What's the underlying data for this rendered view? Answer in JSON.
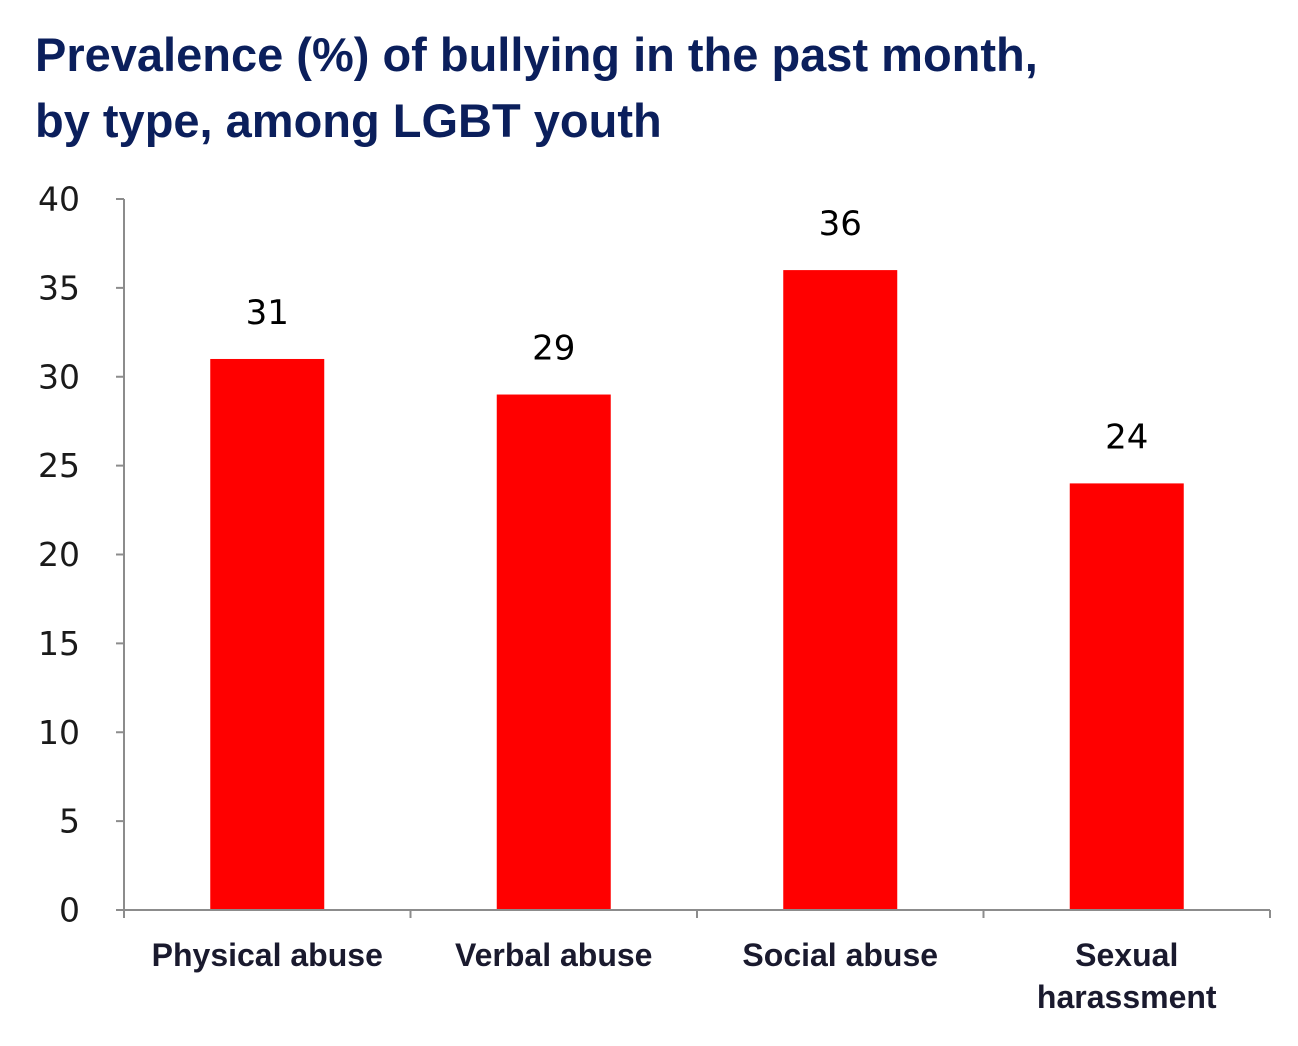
{
  "chart_data": {
    "type": "bar",
    "title_lines": [
      "Prevalence (%) of bullying in the past month,",
      "by type, among LGBT youth"
    ],
    "categories": [
      [
        "Physical abuse"
      ],
      [
        "Verbal abuse"
      ],
      [
        "Social abuse"
      ],
      [
        "Sexual",
        "harassment"
      ]
    ],
    "values": [
      31,
      29,
      36,
      24
    ],
    "data_labels": [
      "31",
      "29",
      "36",
      "24"
    ],
    "y_ticks": [
      "0",
      "5",
      "10",
      "15",
      "20",
      "25",
      "30",
      "35",
      "40"
    ],
    "ylim": [
      0,
      40
    ],
    "grid": false,
    "legend": "none",
    "bar_color": "#ff0000",
    "axis_color": "#8c8c8c",
    "title_color": "#0b1f5c"
  }
}
